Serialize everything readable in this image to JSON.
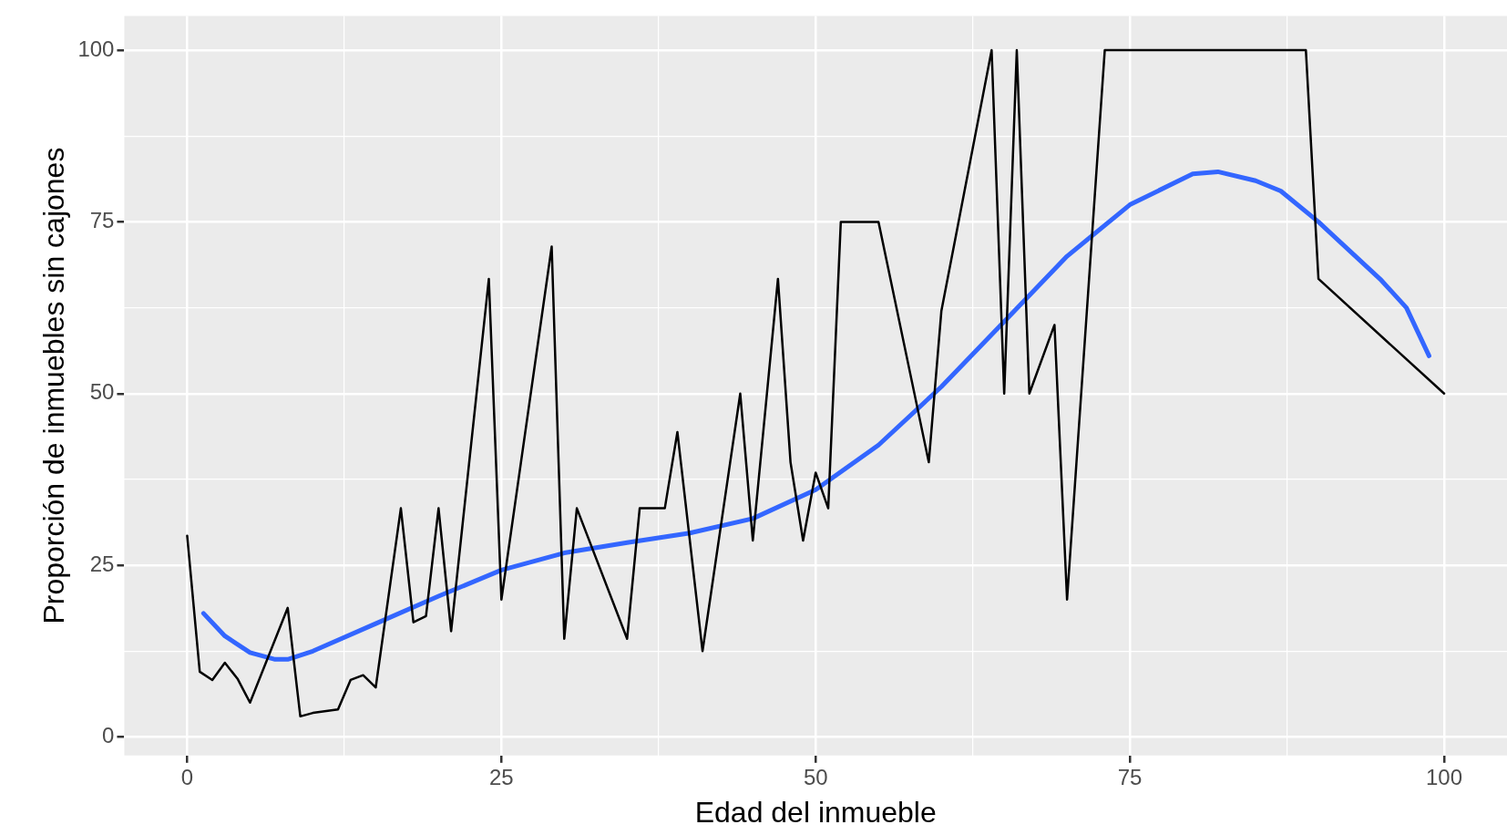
{
  "chart_data": {
    "type": "line",
    "xlabel": "Edad del inmueble",
    "ylabel": "Proporción de inmuebles sin cajones",
    "xlim": [
      -5,
      105
    ],
    "ylim": [
      -2.7,
      105
    ],
    "xticks": [
      0,
      {
        "value": 12.5,
        "label": null
      },
      25,
      {
        "value": 37.5,
        "label": null
      },
      50,
      {
        "value": 62.5,
        "label": null
      },
      75,
      {
        "value": 87.5,
        "label": null
      },
      100
    ],
    "yticks": [
      0,
      {
        "value": 12.5,
        "label": null
      },
      25,
      {
        "value": 37.5,
        "label": null
      },
      50,
      {
        "value": 62.5,
        "label": null
      },
      75,
      {
        "value": 87.5,
        "label": null
      },
      100
    ],
    "grid": true,
    "legend": false,
    "marker": "none",
    "line_style": "solid",
    "series": [
      {
        "color": "#000000",
        "x": [
          0,
          1,
          2,
          3,
          4,
          5,
          8,
          9,
          10,
          12,
          13,
          14,
          15,
          17,
          18,
          19,
          20,
          21,
          24,
          25,
          29,
          30,
          31,
          35,
          36,
          38,
          39,
          41,
          44,
          45,
          47,
          48,
          49,
          50,
          51,
          52,
          55,
          59,
          60,
          64,
          65,
          66,
          67,
          69,
          70,
          73,
          89,
          90,
          100
        ],
        "values": [
          29.3,
          9.5,
          8.3,
          10.8,
          8.5,
          5,
          18.8,
          3,
          3.5,
          4,
          8.3,
          9,
          7.2,
          33.3,
          16.7,
          17.6,
          33.3,
          15.4,
          66.7,
          20,
          71.4,
          14.3,
          33.3,
          14.3,
          33.3,
          33.3,
          44.4,
          12.5,
          50,
          28.6,
          66.7,
          40,
          28.6,
          38.5,
          33.3,
          75,
          75,
          40,
          62,
          100,
          50,
          100,
          50,
          60,
          20,
          100,
          100,
          66.7,
          50
        ]
      },
      {
        "color": "#3366ff",
        "x": [
          1.3,
          3,
          5,
          7,
          8,
          10,
          15,
          20,
          25,
          30,
          35,
          40,
          45,
          50,
          55,
          60,
          65,
          70,
          75,
          80,
          82,
          85,
          87,
          90,
          95,
          97,
          98.8
        ],
        "values": [
          18,
          14.7,
          12.3,
          11.3,
          11.3,
          12.5,
          16.5,
          20.5,
          24.3,
          26.8,
          28.3,
          29.7,
          31.8,
          36,
          42.5,
          51,
          60.5,
          70,
          77.5,
          82,
          82.3,
          81,
          79.5,
          75,
          66.5,
          62.5,
          55.5
        ]
      }
    ]
  }
}
